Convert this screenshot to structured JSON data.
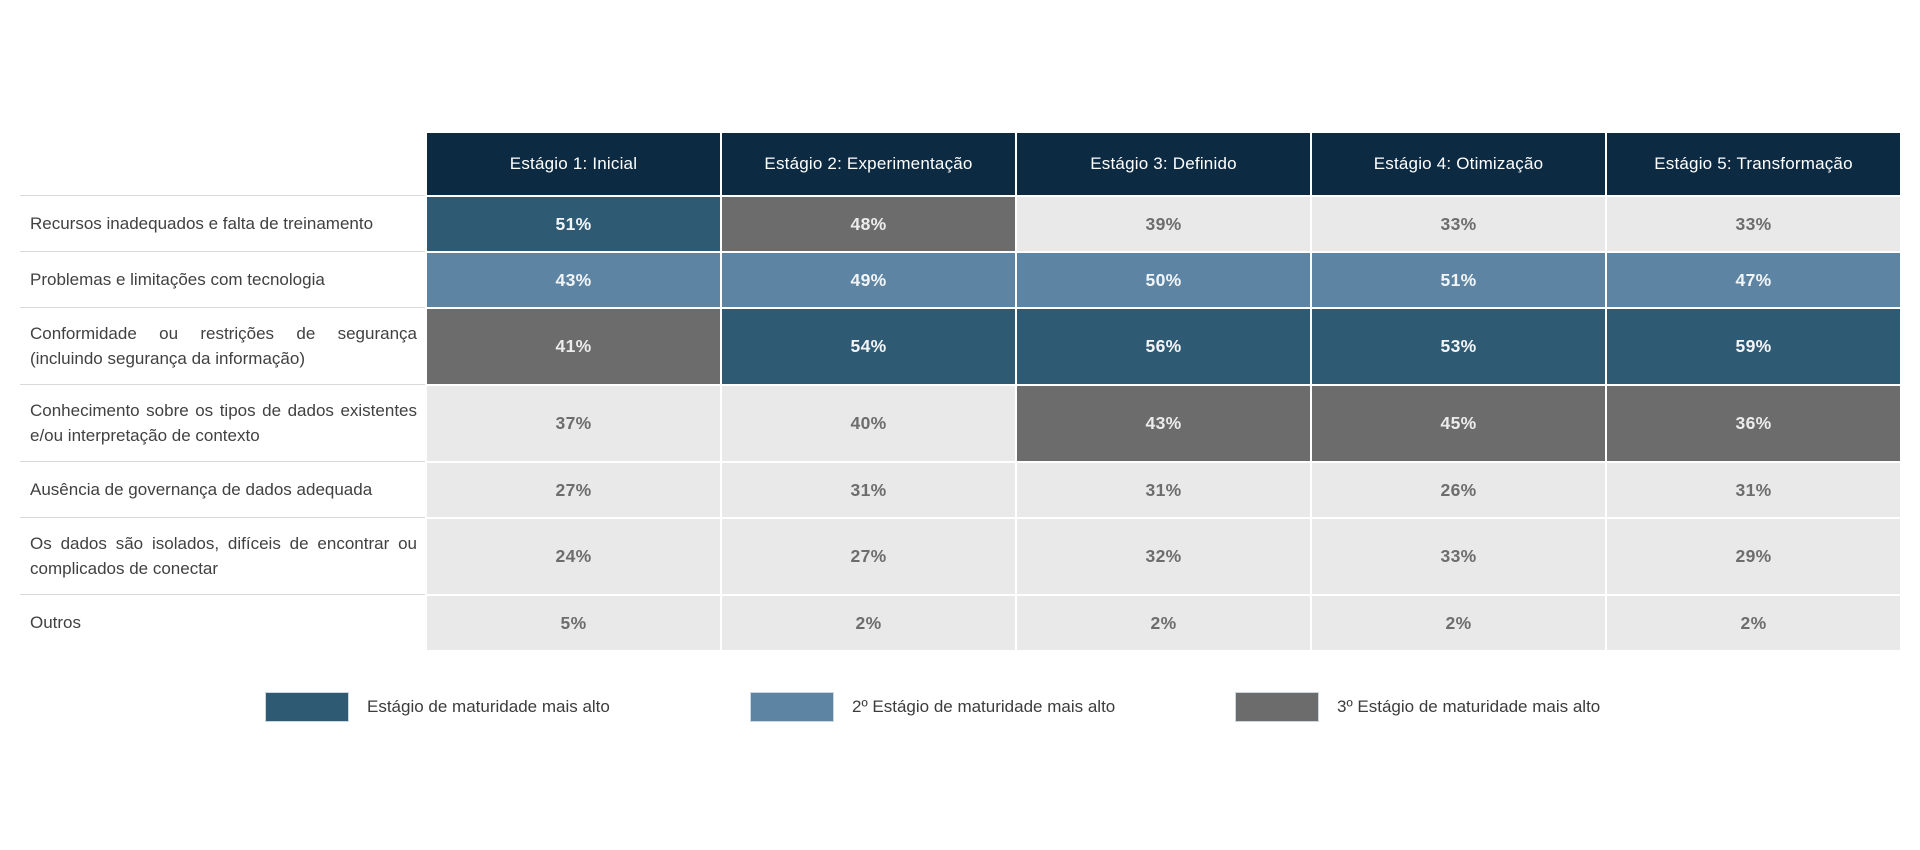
{
  "header": {
    "columns": [
      "Estágio 1: Inicial",
      "Estágio 2: Experimentação",
      "Estágio 3: Definido",
      "Estágio 4: Otimização",
      "Estágio 5: Transformação"
    ]
  },
  "rows": [
    {
      "label": "Recursos inadequados e falta de treinamento",
      "values": [
        "51%",
        "48%",
        "39%",
        "33%",
        "33%"
      ],
      "styles": [
        "highest",
        "third",
        "plain",
        "plain",
        "plain"
      ]
    },
    {
      "label": "Problemas e limitações com tecnologia",
      "values": [
        "43%",
        "49%",
        "50%",
        "51%",
        "47%"
      ],
      "styles": [
        "second",
        "second",
        "second",
        "second",
        "second"
      ]
    },
    {
      "label": "Conformidade ou restrições de segurança (incluindo segurança da informação)",
      "values": [
        "41%",
        "54%",
        "56%",
        "53%",
        "59%"
      ],
      "styles": [
        "third",
        "highest",
        "highest",
        "highest",
        "highest"
      ]
    },
    {
      "label": "Conhecimento sobre os tipos de dados existentes e/ou interpretação de contexto",
      "values": [
        "37%",
        "40%",
        "43%",
        "45%",
        "36%"
      ],
      "styles": [
        "plain",
        "plain",
        "third",
        "third",
        "third"
      ]
    },
    {
      "label": "Ausência de governança de dados adequada",
      "values": [
        "27%",
        "31%",
        "31%",
        "26%",
        "31%"
      ],
      "styles": [
        "plain",
        "plain",
        "plain",
        "plain",
        "plain"
      ]
    },
    {
      "label": "Os dados são isolados, difíceis de encontrar ou complicados de conectar",
      "values": [
        "24%",
        "27%",
        "32%",
        "33%",
        "29%"
      ],
      "styles": [
        "plain",
        "plain",
        "plain",
        "plain",
        "plain"
      ]
    },
    {
      "label": "Outros",
      "values": [
        "5%",
        "2%",
        "2%",
        "2%",
        "2%"
      ],
      "styles": [
        "plain",
        "plain",
        "plain",
        "plain",
        "plain"
      ]
    }
  ],
  "legend": [
    {
      "label": "Estágio de maturidade mais alto",
      "color": "#2f5a74"
    },
    {
      "label": "2º Estágio de maturidade mais alto",
      "color": "#5d84a2"
    },
    {
      "label": "3º Estágio de maturidade mais alto",
      "color": "#6c6c6c"
    }
  ],
  "colors": {
    "header_background": "#0d2a43",
    "highest": "#2f5a74",
    "second": "#5d84a2",
    "third": "#6c6c6c",
    "plain_cell": "#e9e9e9",
    "plain_text": "#6d6d6d",
    "label_text": "#414141",
    "separator": "#d9d9d9"
  },
  "chart_data": {
    "type": "heatmap",
    "title": "",
    "categories": [
      "Estágio 1: Inicial",
      "Estágio 2: Experimentação",
      "Estágio 3: Definido",
      "Estágio 4: Otimização",
      "Estágio 5: Transformação"
    ],
    "series": [
      {
        "name": "Recursos inadequados e falta de treinamento",
        "values": [
          51,
          48,
          39,
          33,
          33
        ]
      },
      {
        "name": "Problemas e limitações com tecnologia",
        "values": [
          43,
          49,
          50,
          51,
          47
        ]
      },
      {
        "name": "Conformidade ou restrições de segurança (incluindo segurança da informação)",
        "values": [
          41,
          54,
          56,
          53,
          59
        ]
      },
      {
        "name": "Conhecimento sobre os tipos de dados existentes e/ou interpretação de contexto",
        "values": [
          37,
          40,
          43,
          45,
          36
        ]
      },
      {
        "name": "Ausência de governança de dados adequada",
        "values": [
          27,
          31,
          31,
          26,
          31
        ]
      },
      {
        "name": "Os dados são isolados, difíceis de encontrar ou complicados de conectar",
        "values": [
          24,
          27,
          32,
          33,
          29
        ]
      },
      {
        "name": "Outros",
        "values": [
          5,
          2,
          2,
          2,
          2
        ]
      }
    ],
    "unit": "%",
    "legend_entries": [
      "Estágio de maturidade mais alto",
      "2º Estágio de maturidade mais alto",
      "3º Estágio de maturidade mais alto"
    ],
    "legend_position": "bottom",
    "highlight_map": [
      [
        "highest",
        "third",
        "none",
        "none",
        "none"
      ],
      [
        "second",
        "second",
        "second",
        "second",
        "second"
      ],
      [
        "third",
        "highest",
        "highest",
        "highest",
        "highest"
      ],
      [
        "none",
        "none",
        "third",
        "third",
        "third"
      ],
      [
        "none",
        "none",
        "none",
        "none",
        "none"
      ],
      [
        "none",
        "none",
        "none",
        "none",
        "none"
      ],
      [
        "none",
        "none",
        "none",
        "none",
        "none"
      ]
    ]
  }
}
